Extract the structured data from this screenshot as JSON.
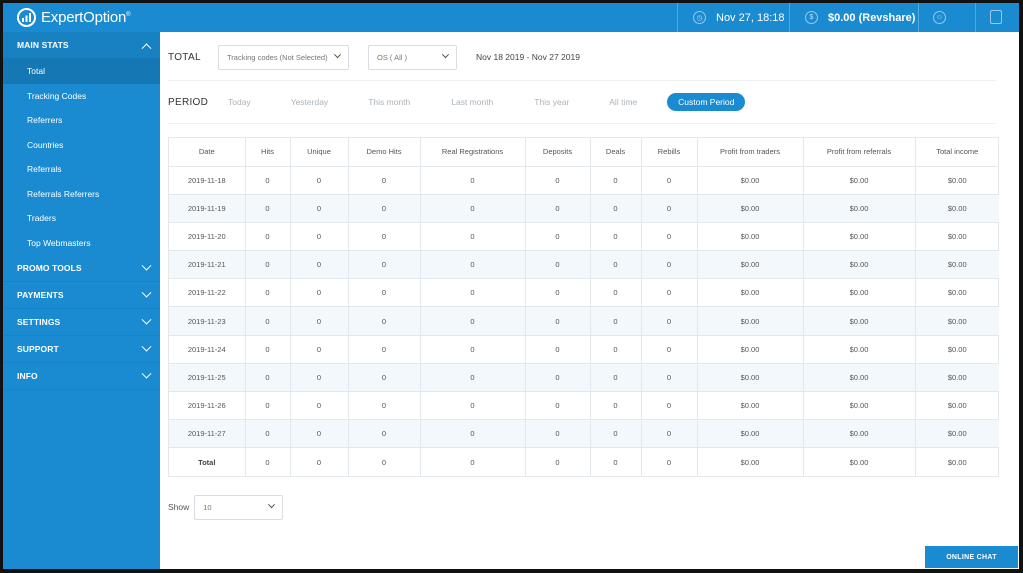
{
  "brand": {
    "name": "ExpertOption",
    "mark": "®"
  },
  "header": {
    "datetime": "Nov 27, 18:18",
    "balance": "$0.00 (Revshare)",
    "icons": [
      "clock-icon",
      "dollar-icon",
      "user-icon",
      "logout-icon"
    ]
  },
  "sidebar": {
    "main_stats": {
      "label": "MAIN STATS",
      "items": [
        {
          "label": "Total"
        },
        {
          "label": "Tracking Codes"
        },
        {
          "label": "Referrers"
        },
        {
          "label": "Countries"
        },
        {
          "label": "Referrals"
        },
        {
          "label": "Referrals Referrers"
        },
        {
          "label": "Traders"
        },
        {
          "label": "Top Webmasters"
        }
      ]
    },
    "promo_tools": "PROMO TOOLS",
    "payments": "PAYMENTS",
    "settings": "SETTINGS",
    "support": "SUPPORT",
    "info": "INFO"
  },
  "filters": {
    "title": "TOTAL",
    "tracking_codes": "Tracking codes (Not Selected)",
    "os": "OS ( All )",
    "date_range": "Nov 18 2019 - Nov 27 2019"
  },
  "period": {
    "label": "PERIOD",
    "options": [
      "Today",
      "Yesterday",
      "This month",
      "Last month",
      "This year",
      "All time",
      "Custom Period"
    ],
    "active": "Custom Period"
  },
  "table": {
    "columns": [
      "Date",
      "Hits",
      "Unique",
      "Demo Hits",
      "Real Registrations",
      "Deposits",
      "Deals",
      "Rebills",
      "Profit from traders",
      "Profit from referrals",
      "Total income"
    ],
    "rows": [
      [
        "2019-11-18",
        "0",
        "0",
        "0",
        "0",
        "0",
        "0",
        "0",
        "$0.00",
        "$0.00",
        "$0.00"
      ],
      [
        "2019-11-19",
        "0",
        "0",
        "0",
        "0",
        "0",
        "0",
        "0",
        "$0.00",
        "$0.00",
        "$0.00"
      ],
      [
        "2019-11-20",
        "0",
        "0",
        "0",
        "0",
        "0",
        "0",
        "0",
        "$0.00",
        "$0.00",
        "$0.00"
      ],
      [
        "2019-11-21",
        "0",
        "0",
        "0",
        "0",
        "0",
        "0",
        "0",
        "$0.00",
        "$0.00",
        "$0.00"
      ],
      [
        "2019-11-22",
        "0",
        "0",
        "0",
        "0",
        "0",
        "0",
        "0",
        "$0.00",
        "$0.00",
        "$0.00"
      ],
      [
        "2019-11-23",
        "0",
        "0",
        "0",
        "0",
        "0",
        "0",
        "0",
        "$0.00",
        "$0.00",
        "$0.00"
      ],
      [
        "2019-11-24",
        "0",
        "0",
        "0",
        "0",
        "0",
        "0",
        "0",
        "$0.00",
        "$0.00",
        "$0.00"
      ],
      [
        "2019-11-25",
        "0",
        "0",
        "0",
        "0",
        "0",
        "0",
        "0",
        "$0.00",
        "$0.00",
        "$0.00"
      ],
      [
        "2019-11-26",
        "0",
        "0",
        "0",
        "0",
        "0",
        "0",
        "0",
        "$0.00",
        "$0.00",
        "$0.00"
      ],
      [
        "2019-11-27",
        "0",
        "0",
        "0",
        "0",
        "0",
        "0",
        "0",
        "$0.00",
        "$0.00",
        "$0.00"
      ]
    ],
    "total_row": [
      "Total",
      "0",
      "0",
      "0",
      "0",
      "0",
      "0",
      "0",
      "$0.00",
      "$0.00",
      "$0.00"
    ]
  },
  "pagination": {
    "show_label": "Show",
    "page_size": "10"
  },
  "chat": {
    "label": "ONLINE CHAT"
  },
  "colors": {
    "brand": "#1a8bd1",
    "sidebar_active": "#1577b4"
  }
}
